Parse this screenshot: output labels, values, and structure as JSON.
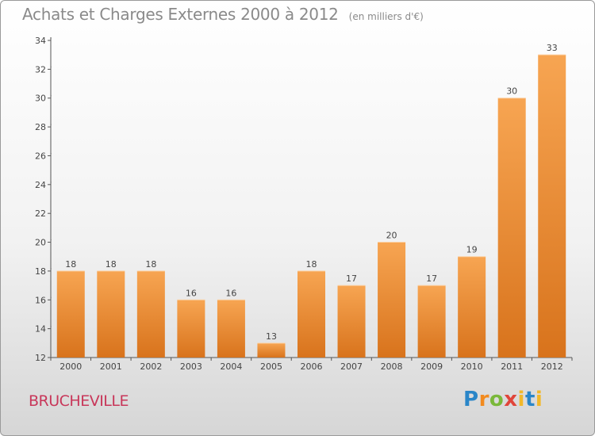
{
  "header": {
    "title": "Achats et Charges Externes 2000 à 2012",
    "unit": "(en milliers d'€)"
  },
  "footer": {
    "town": "BRUCHEVILLE",
    "logo": "Proxiti"
  },
  "colors": {
    "bar_light": "#f7a552",
    "bar_dark": "#d8731c",
    "town": "#c8375a"
  },
  "chart_data": {
    "type": "bar",
    "title": "Achats et Charges Externes 2000 à 2012",
    "subtitle": "(en milliers d'€)",
    "xlabel": "",
    "ylabel": "",
    "categories": [
      "2000",
      "2001",
      "2002",
      "2003",
      "2004",
      "2005",
      "2006",
      "2007",
      "2008",
      "2009",
      "2010",
      "2011",
      "2012"
    ],
    "values": [
      18,
      18,
      18,
      16,
      16,
      13,
      18,
      17,
      20,
      17,
      19,
      30,
      33
    ],
    "ylim": [
      12,
      34
    ],
    "yticks": [
      12,
      14,
      16,
      18,
      20,
      22,
      24,
      26,
      28,
      30,
      32,
      34
    ],
    "grid": false,
    "legend": "none",
    "data_labels": true
  }
}
